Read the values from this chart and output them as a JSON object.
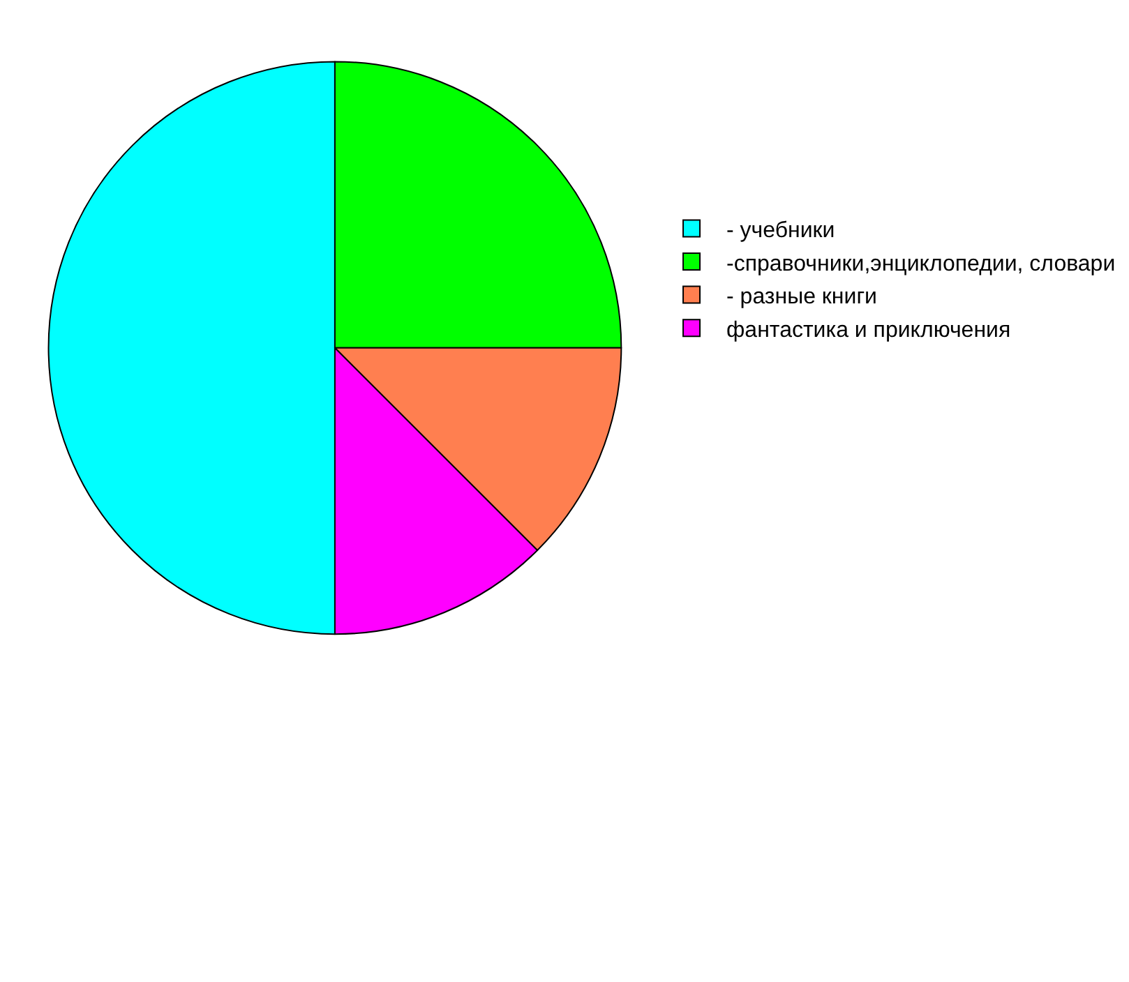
{
  "chart_data": {
    "type": "pie",
    "categories": [
      "- учебники",
      "-справочники,энциклопедии, словари",
      "- разные книги",
      "фантастика и приключения"
    ],
    "values": [
      50,
      25,
      12.5,
      12.5
    ],
    "colors": [
      "#00ffff",
      "#00ff00",
      "#ff7f50",
      "#ff00ff"
    ],
    "legend": "right"
  }
}
